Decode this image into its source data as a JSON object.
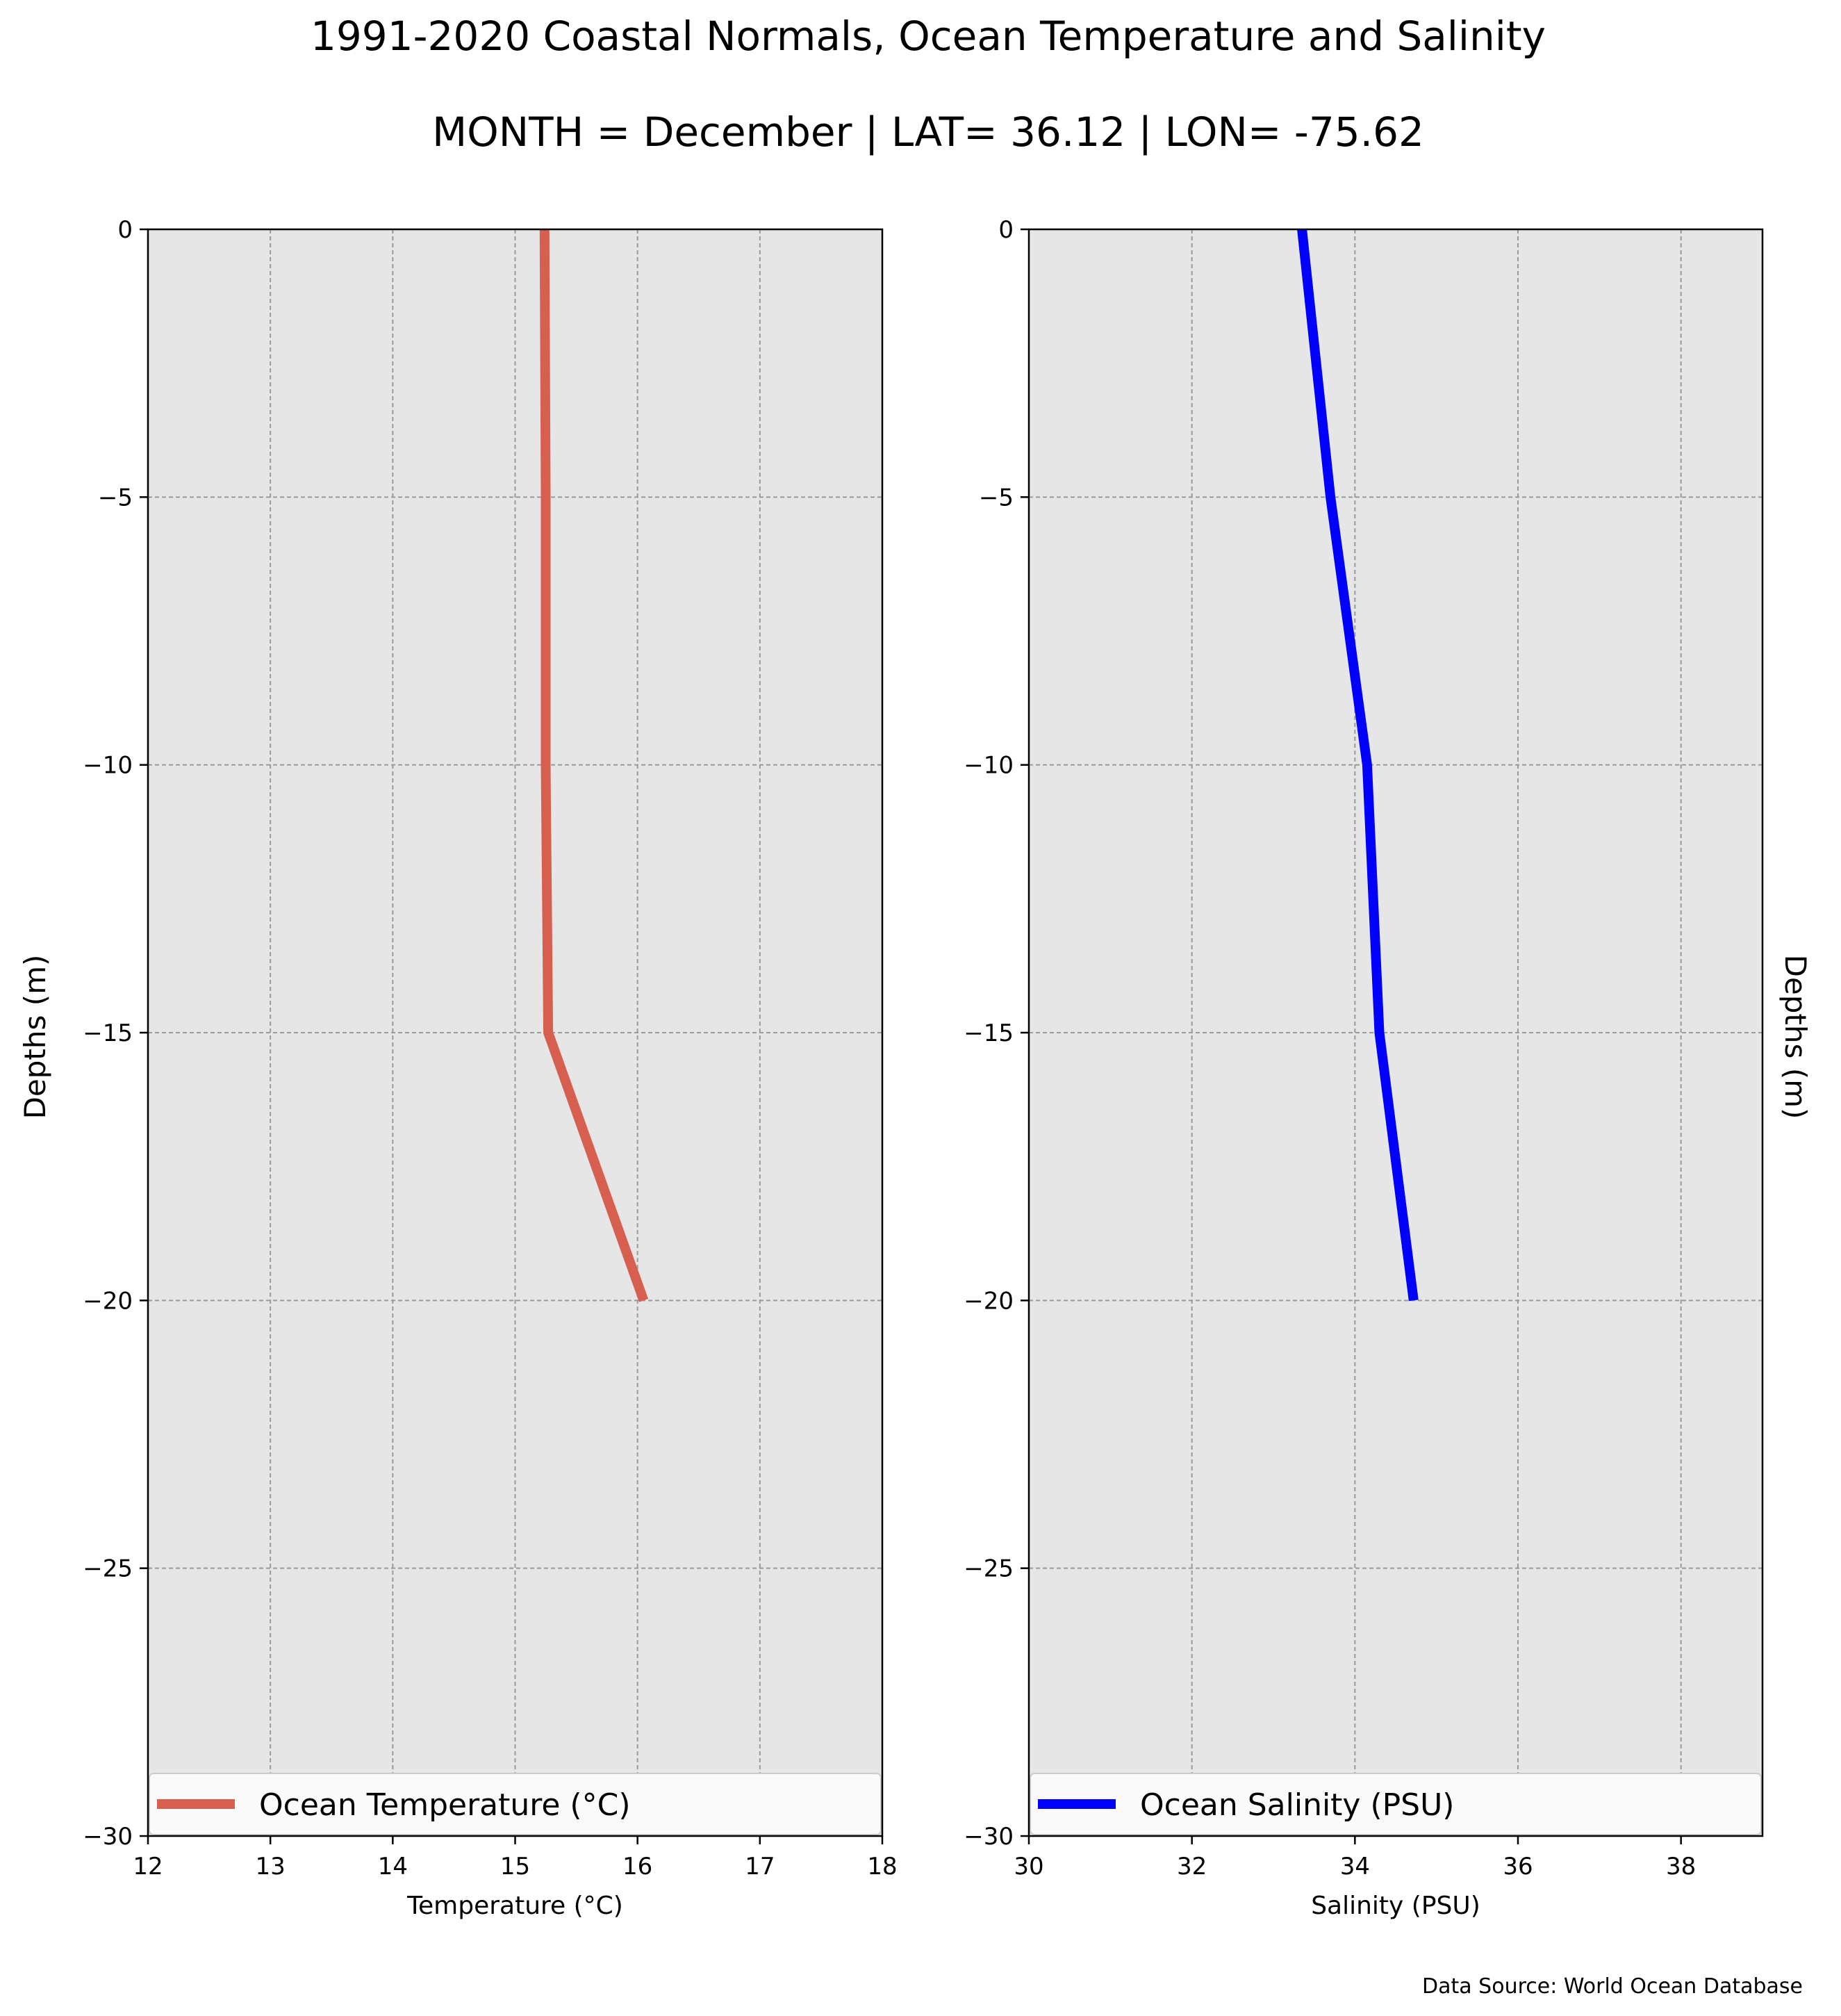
{
  "title": "1991-2020 Coastal Normals, Ocean Temperature and Salinity",
  "subtitle": "MONTH = December | LAT= 36.12 | LON= -75.62",
  "source_note": "Data Source: World Ocean Database",
  "colors": {
    "plot_background": "#e6e6e6",
    "grid": "#9a9a9a",
    "temperature_line": "#d65f4f",
    "salinity_line": "#0000ff"
  },
  "chart_data": [
    {
      "type": "line",
      "title": "",
      "xlabel": "Temperature ($^\\circ$C)",
      "xlabel_text": "Temperature (°C)",
      "ylabel": "Depths (m)",
      "xlim": [
        12,
        18
      ],
      "ylim": [
        -30,
        0
      ],
      "xticks": [
        12,
        13,
        14,
        15,
        16,
        17,
        18
      ],
      "xtick_labels": [
        "12",
        "13",
        "14",
        "15",
        "16",
        "17",
        "18"
      ],
      "yticks": [
        0,
        -5,
        -10,
        -15,
        -20,
        -25,
        -30
      ],
      "ytick_labels": [
        "0",
        "−5",
        "−10",
        "−15",
        "−20",
        "−25",
        "−30"
      ],
      "grid": true,
      "legend_position": "bottom",
      "series": [
        {
          "name": "Ocean Temperature (°C)",
          "points": [
            {
              "x": 15.24,
              "y": 0
            },
            {
              "x": 15.25,
              "y": -5
            },
            {
              "x": 15.25,
              "y": -10
            },
            {
              "x": 15.27,
              "y": -15
            },
            {
              "x": 16.05,
              "y": -20
            }
          ]
        }
      ]
    },
    {
      "type": "line",
      "title": "",
      "xlabel": "Salinity (PSU)",
      "ylabel": "Depths (m)",
      "xlim": [
        30,
        39
      ],
      "ylim": [
        -30,
        0
      ],
      "xticks": [
        30,
        32,
        34,
        36,
        38
      ],
      "xtick_labels": [
        "30",
        "32",
        "34",
        "36",
        "38"
      ],
      "yticks": [
        0,
        -5,
        -10,
        -15,
        -20,
        -25,
        -30
      ],
      "ytick_labels": [
        "0",
        "−5",
        "−10",
        "−15",
        "−20",
        "−25",
        "−30"
      ],
      "grid": true,
      "legend_position": "bottom",
      "series": [
        {
          "name": "Ocean Salinity (PSU)",
          "points": [
            {
              "x": 33.35,
              "y": 0
            },
            {
              "x": 33.7,
              "y": -5
            },
            {
              "x": 34.15,
              "y": -10
            },
            {
              "x": 34.3,
              "y": -15
            },
            {
              "x": 34.72,
              "y": -20
            }
          ]
        }
      ]
    }
  ]
}
